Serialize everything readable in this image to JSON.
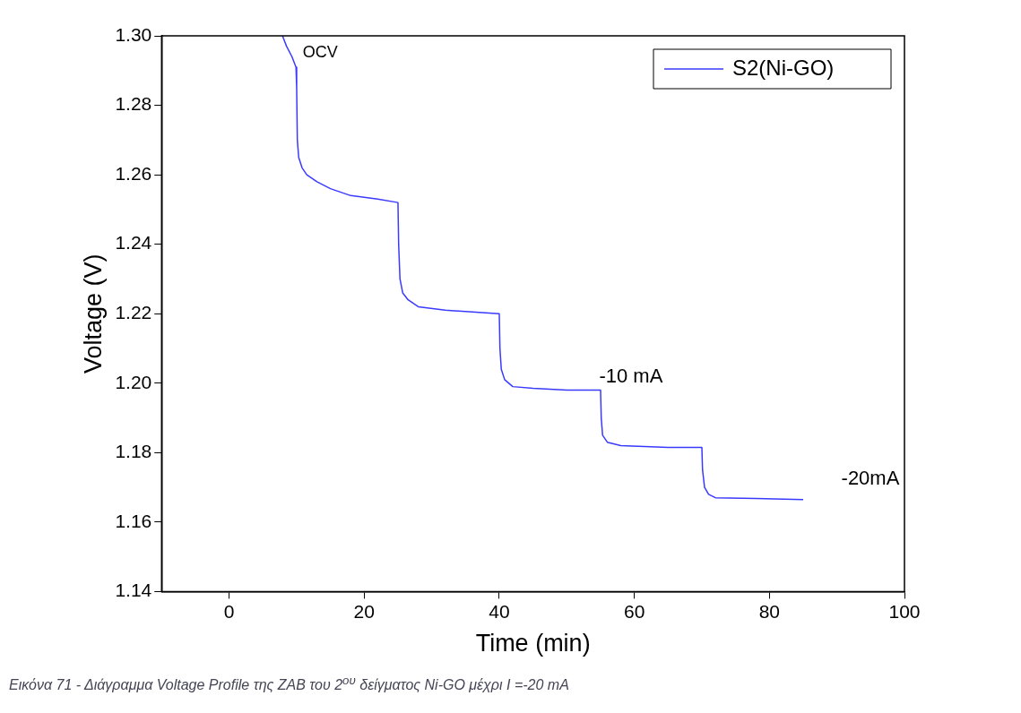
{
  "chart_data": {
    "type": "line",
    "xlabel": "Time (min)",
    "ylabel": "Voltage (V)",
    "xlim": [
      -10,
      100
    ],
    "xticks": [
      0,
      20,
      40,
      60,
      80,
      100
    ],
    "ylim": [
      1.14,
      1.3
    ],
    "yticks": [
      {
        "value": 1.14,
        "label": "1.14"
      },
      {
        "value": 1.16,
        "label": "1.16"
      },
      {
        "value": 1.18,
        "label": "1.18"
      },
      {
        "value": 1.2,
        "label": "1.20"
      },
      {
        "value": 1.22,
        "label": "1.22"
      },
      {
        "value": 1.24,
        "label": "1.24"
      },
      {
        "value": 1.26,
        "label": "1.26"
      },
      {
        "value": 1.28,
        "label": "1.28"
      },
      {
        "value": 1.3,
        "label": "1.30"
      }
    ],
    "grid": false,
    "legend": "top right",
    "marker": "none",
    "line_style": "solid",
    "series": [
      {
        "name": "S2(Ni-GO)",
        "color": "#3a3aff",
        "x": [
          7.9,
          8.5,
          9.3,
          9.9,
          10.0,
          10.1,
          10.3,
          10.8,
          11.5,
          13,
          15,
          18,
          22,
          25,
          25.1,
          25.3,
          25.7,
          26.5,
          28,
          32,
          36,
          40,
          40.1,
          40.3,
          40.8,
          42,
          45,
          50,
          55,
          55.1,
          55.3,
          56,
          58,
          65,
          70,
          70.1,
          70.4,
          71,
          72,
          78,
          85
        ],
        "values": [
          1.3,
          1.297,
          1.294,
          1.291,
          1.285,
          1.27,
          1.265,
          1.262,
          1.26,
          1.258,
          1.256,
          1.254,
          1.253,
          1.252,
          1.24,
          1.23,
          1.226,
          1.224,
          1.222,
          1.221,
          1.2205,
          1.22,
          1.21,
          1.204,
          1.201,
          1.199,
          1.1985,
          1.198,
          1.198,
          1.19,
          1.185,
          1.183,
          1.182,
          1.1815,
          1.1815,
          1.175,
          1.17,
          1.168,
          1.167,
          1.1668,
          1.1665
        ]
      }
    ],
    "annotations": [
      "OCV",
      "-10 mA",
      "-20mA",
      "Εικόνα 71 - Διάγραμμα Voltage Profile της ZAB του 2$^{ου}$ δείγματος Ni-GO μέχρι I =-20 mA"
    ]
  }
}
